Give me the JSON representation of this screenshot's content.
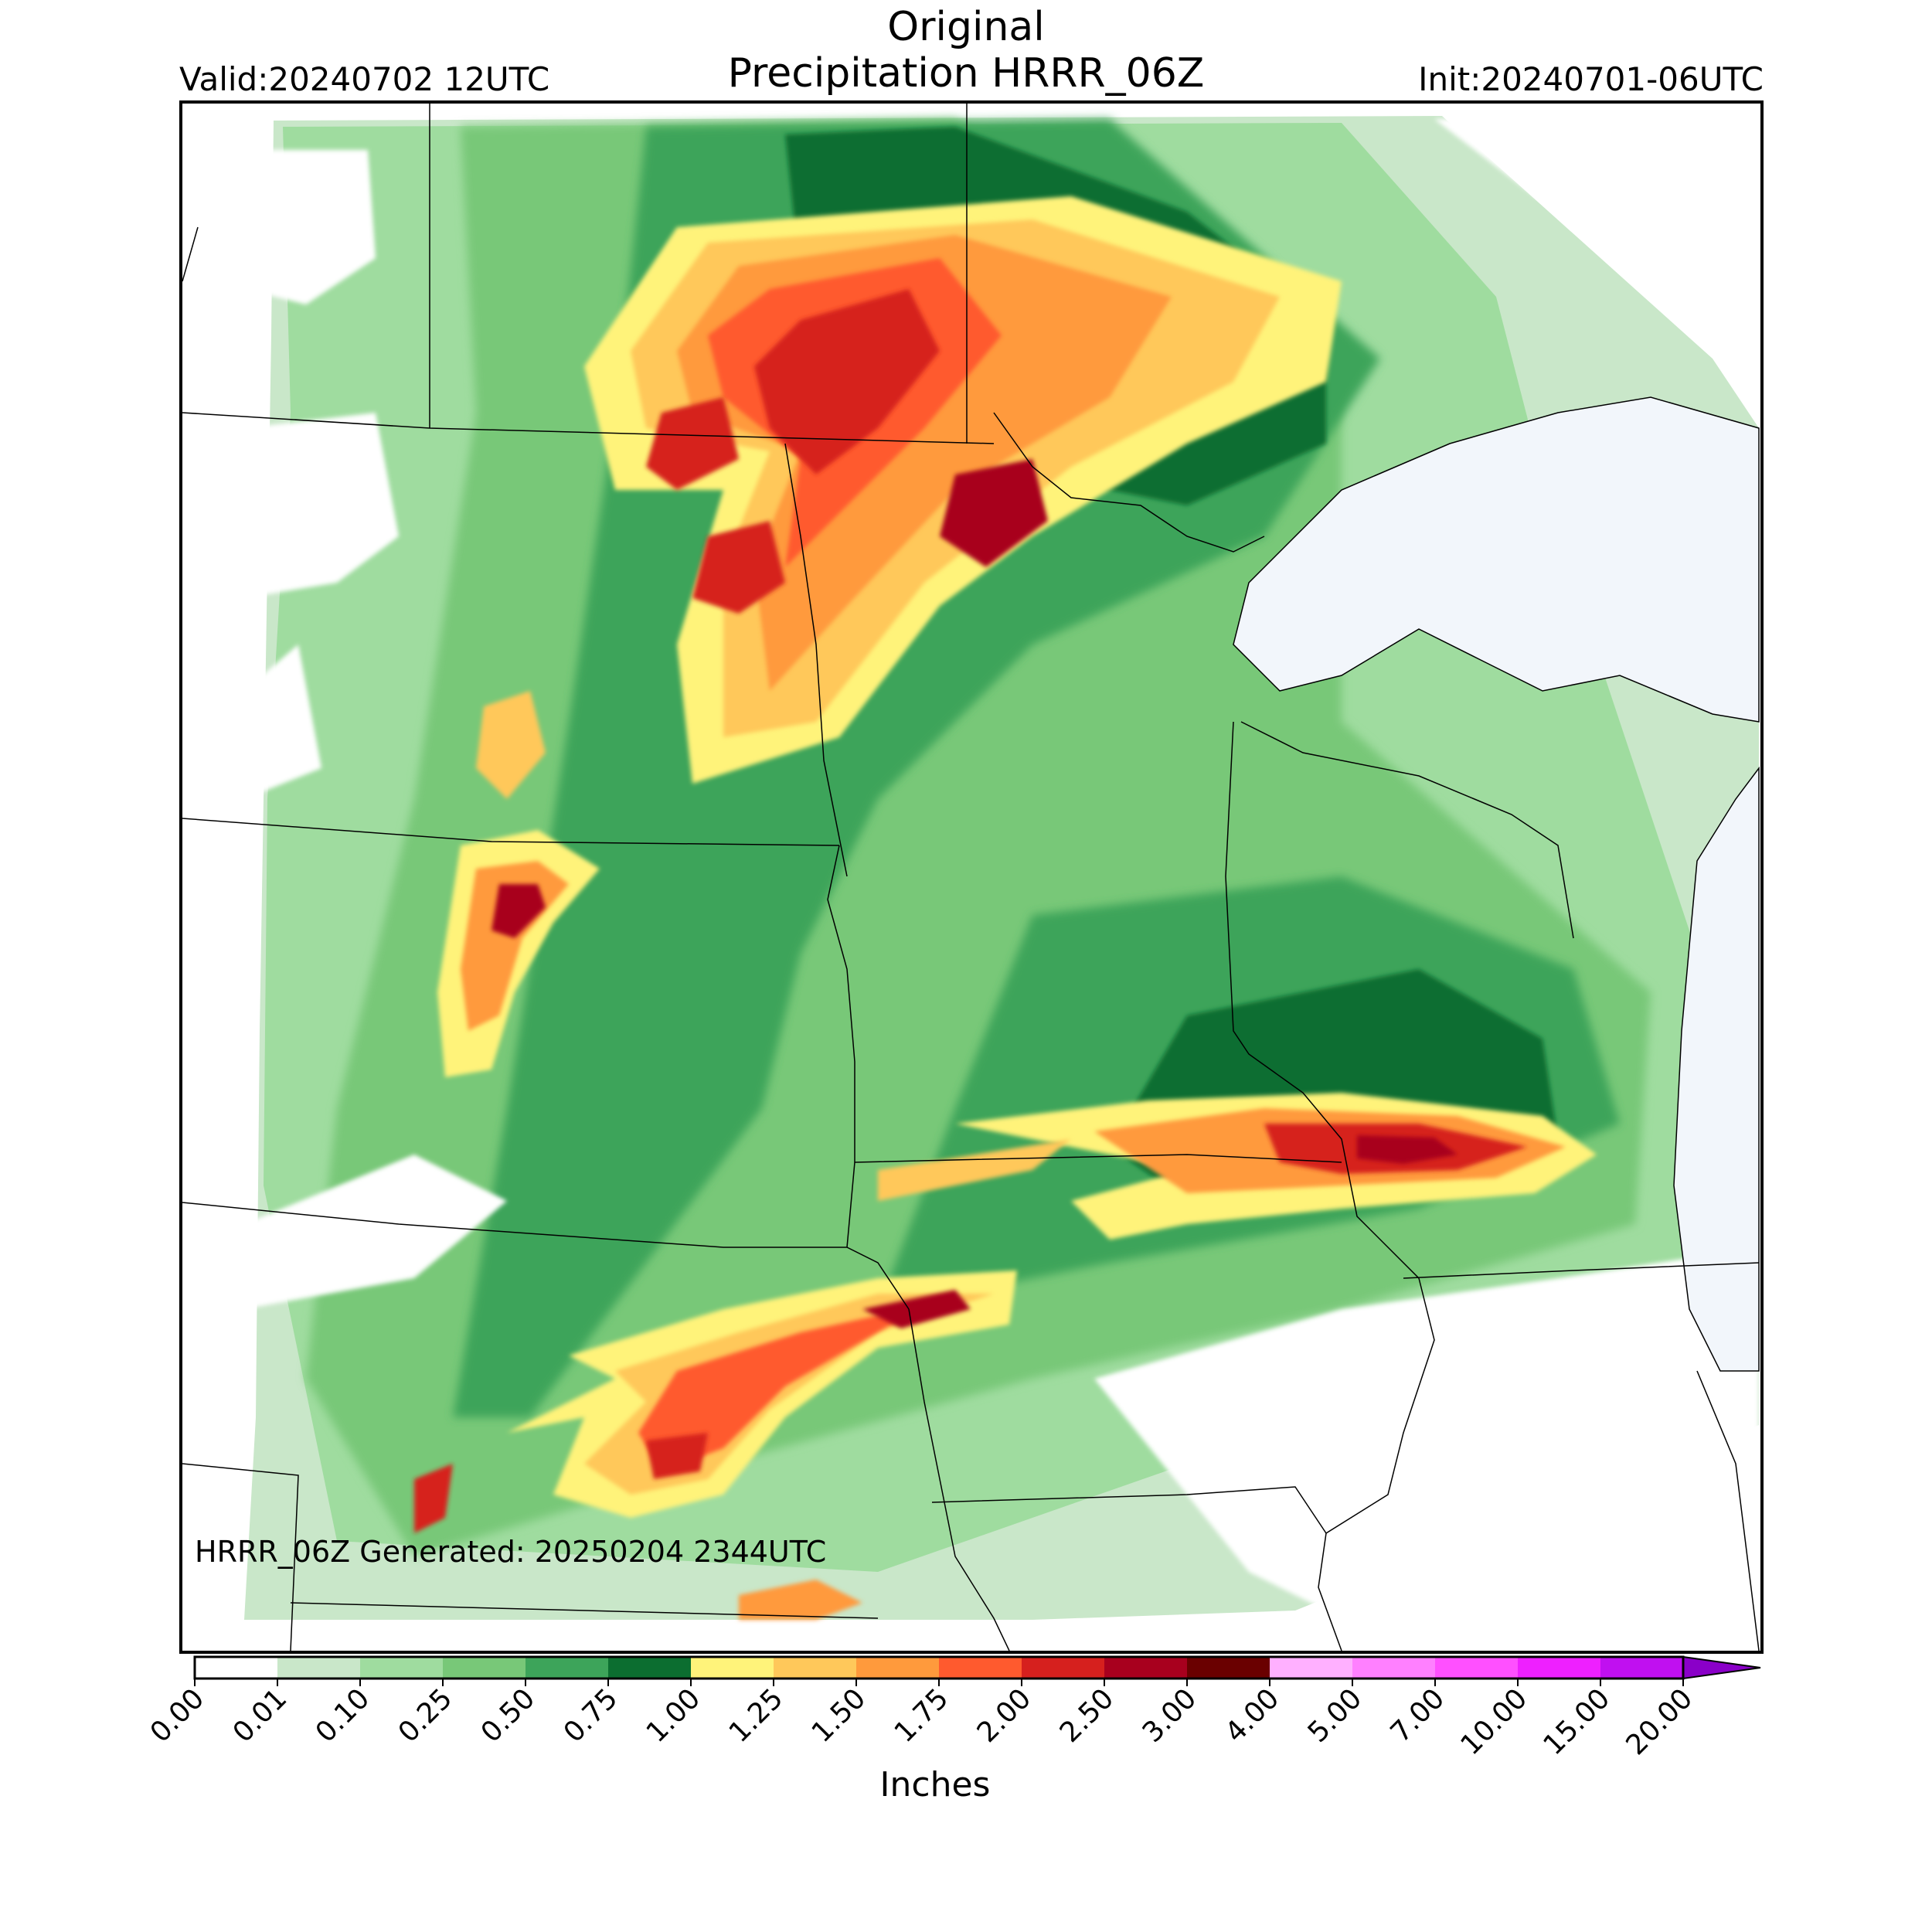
{
  "header": {
    "title_line1": "Original",
    "title_line2": "Precipitation HRRR_06Z",
    "valid": "Valid:20240702 12UTC",
    "init": "Init:20240701-06UTC"
  },
  "map": {
    "footer_text": "HRRR_06Z Generated: 20250204 2344UTC",
    "region": "Upper Midwest / Northern Plains",
    "lake_color": "#f2f6fb",
    "border_color": "#000000"
  },
  "colorbar": {
    "units_label": "Inches",
    "levels": [
      "0.00",
      "0.01",
      "0.10",
      "0.25",
      "0.50",
      "0.75",
      "1.00",
      "1.25",
      "1.50",
      "1.75",
      "2.00",
      "2.50",
      "3.00",
      "4.00",
      "5.00",
      "7.00",
      "10.00",
      "15.00",
      "20.00"
    ],
    "colors": [
      "#ffffff",
      "#c9e7c9",
      "#9fdc9f",
      "#78c878",
      "#3da45a",
      "#0c6e30",
      "#fff37a",
      "#ffc85a",
      "#ff9a3c",
      "#ff5a2e",
      "#d6201e",
      "#a8001e",
      "#6a0000",
      "#ffb0ff",
      "#ff80ff",
      "#ff50ff",
      "#ee20ff",
      "#c010f0"
    ],
    "extend_color": "#8a00c8"
  }
}
